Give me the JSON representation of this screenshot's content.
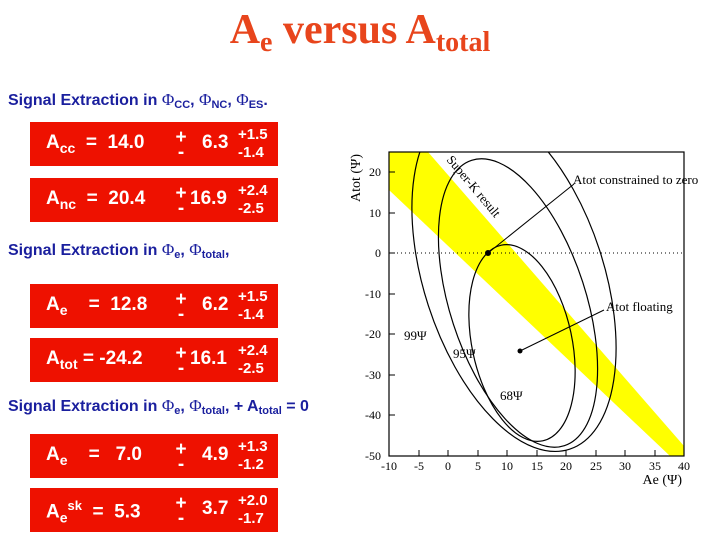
{
  "title": {
    "main": "A",
    "sub1": "e",
    "mid": " versus A",
    "sub2": "total"
  },
  "headings": [
    {
      "prefix": "Signal Extraction in ",
      "p1": "Φ",
      "s1": "CC",
      "c1": ", ",
      "p2": "Φ",
      "s2": "NC",
      "c2": ", ",
      "p3": "Φ",
      "s3": "ES",
      "c3": "."
    },
    {
      "prefix": "Signal Extraction in ",
      "p1": "Φ",
      "s1": "e",
      "c1": ", ",
      "p2": "Φ",
      "s2": "total",
      "c2": ","
    },
    {
      "prefix": "Signal Extraction in ",
      "p1": "Φ",
      "s1": "e",
      "c1": ", ",
      "p2": "Φ",
      "s2": "total",
      "c2": ", + A",
      "s3": "total",
      "c3": " = 0"
    }
  ],
  "results": [
    {
      "sym": "A",
      "sub": "cc",
      "sup": "",
      "val": "  =  14.0",
      "pm_plus": "+",
      "pm_minus": "-",
      "stat": "6.3",
      "up": "+1.5",
      "down": "-1.4"
    },
    {
      "sym": "A",
      "sub": "nc",
      "sup": "",
      "val": "  =  20.4",
      "pm_plus": "+",
      "pm_minus": "-",
      "stat": "16.9",
      "up": "+2.4",
      "down": "-2.5"
    },
    {
      "sym": "A",
      "sub": "e",
      "sup": "",
      "val": "    =  12.8",
      "pm_plus": "+",
      "pm_minus": "-",
      "stat": "6.2",
      "up": "+1.5",
      "down": "-1.4"
    },
    {
      "sym": "A",
      "sub": "tot",
      "sup": "",
      "val": " = -24.2",
      "pm_plus": "+",
      "pm_minus": "-",
      "stat": "16.1",
      "up": "+2.4",
      "down": "-2.5"
    },
    {
      "sym": "A",
      "sub": "e",
      "sup": "",
      "val": "    =   7.0",
      "pm_plus": "+",
      "pm_minus": "-",
      "stat": "4.9",
      "up": "+1.3",
      "down": "-1.2"
    },
    {
      "sym": "A",
      "sub": "e",
      "sup": "sk",
      "val": "  =  5.3",
      "pm_plus": "+",
      "pm_minus": "-",
      "stat": "3.7",
      "up": "+2.0",
      "down": "-1.7"
    }
  ],
  "plot": {
    "xlabel": "Ae (Ψ)",
    "ylabel": "Atot (Ψ)",
    "xticks": [
      "-10",
      "-5",
      "0",
      "5",
      "10",
      "15",
      "20",
      "25",
      "30",
      "35",
      "40"
    ],
    "yticks": [
      "20",
      "10",
      "0",
      "-10",
      "-20",
      "-30",
      "-40",
      "-50"
    ],
    "band_label": "Super-K result",
    "ann_zero": "Atot constrained to zero",
    "ann_float": "Atot floating",
    "contour_labels": [
      "99Ψ",
      "95Ψ",
      "68Ψ"
    ],
    "band_color": "#ffff00"
  }
}
